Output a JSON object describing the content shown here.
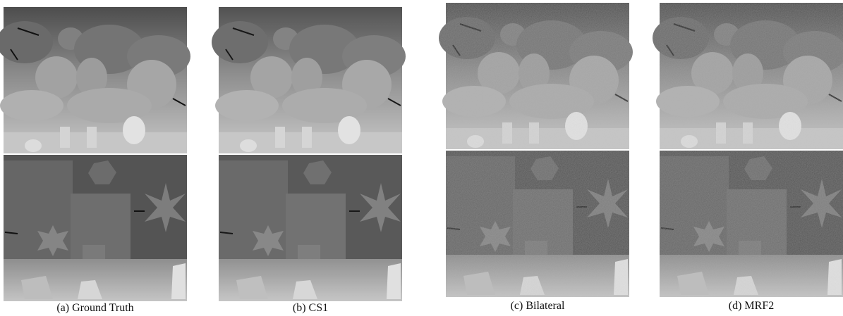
{
  "captions": [
    "(a) Ground Truth",
    "(b) CS1",
    "(c) Bilateral",
    "(d) MRF2"
  ]
}
